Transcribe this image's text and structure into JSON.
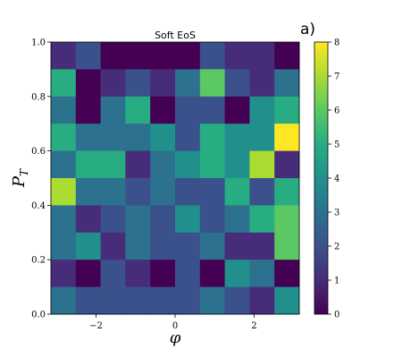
{
  "chart_data": {
    "type": "heatmap",
    "title": "Soft EoS",
    "panel_label": "a)",
    "xlabel_symbol": "φ",
    "ylabel_main": "P",
    "ylabel_sub": "T",
    "xlim": [
      -3.14159,
      3.14159
    ],
    "ylim": [
      0.0,
      1.0
    ],
    "x_ticks": [
      -2,
      0,
      2
    ],
    "x_tick_labels": [
      "−2",
      "0",
      "2"
    ],
    "y_ticks": [
      0.0,
      0.2,
      0.4,
      0.6,
      0.8,
      1.0
    ],
    "y_tick_labels": [
      "0.0",
      "0.2",
      "0.4",
      "0.6",
      "0.8",
      "1.0"
    ],
    "n_x_bins": 10,
    "n_y_bins": 10,
    "colormap": "viridis",
    "color_range": [
      0,
      8
    ],
    "colorbar_ticks": [
      0,
      1,
      2,
      3,
      4,
      5,
      6,
      7,
      8
    ],
    "colorbar_tick_labels": [
      "0",
      "1",
      "2",
      "3",
      "4",
      "5",
      "6",
      "7",
      "8"
    ],
    "values_top_row_first": [
      [
        1,
        2,
        0,
        0,
        0,
        0,
        2,
        1,
        1,
        0
      ],
      [
        5,
        0,
        1,
        2,
        1,
        3,
        6,
        2,
        1,
        3
      ],
      [
        3,
        0,
        3,
        5,
        0,
        2,
        2,
        0,
        4,
        5
      ],
      [
        5,
        3,
        3,
        3,
        4,
        2,
        5,
        4,
        4,
        8
      ],
      [
        3,
        5,
        5,
        1,
        3,
        4,
        5,
        4,
        7,
        1
      ],
      [
        7,
        3,
        3,
        2,
        3,
        2,
        2,
        5,
        2,
        5
      ],
      [
        3,
        1,
        2,
        3,
        2,
        4,
        2,
        3,
        5,
        6
      ],
      [
        3,
        4,
        1,
        3,
        2,
        2,
        3,
        1,
        1,
        6
      ],
      [
        1,
        0,
        2,
        1,
        0,
        2,
        0,
        4,
        3,
        0
      ],
      [
        3,
        2,
        2,
        2,
        2,
        2,
        3,
        2,
        1,
        4
      ]
    ]
  }
}
